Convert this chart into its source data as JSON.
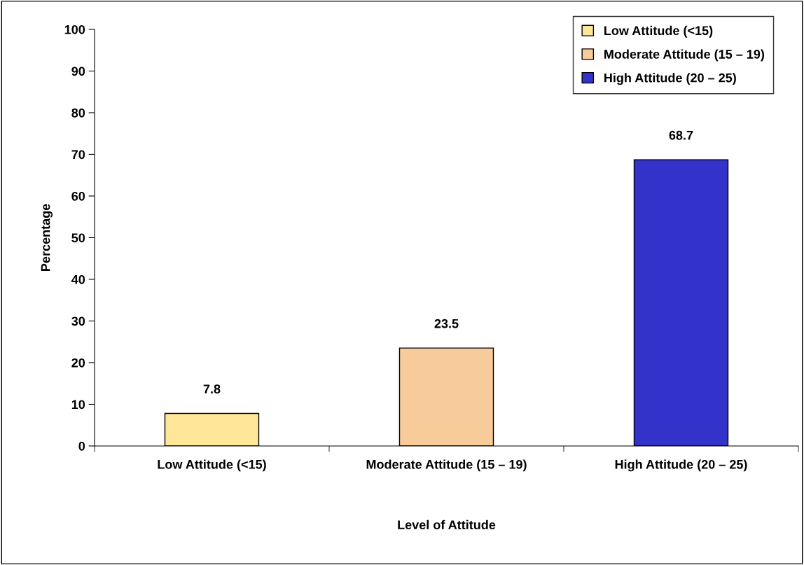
{
  "chart_data": {
    "type": "bar",
    "xlabel": "Level of Attitude",
    "ylabel": "Percentage",
    "categories": [
      "Low Attitude (<15)",
      "Moderate Attitude (15 – 19)",
      "High Attitude (20 – 25)"
    ],
    "stacked": true,
    "series": [
      {
        "name": "Low Attitude (<15)",
        "color": "#ffe699",
        "values": [
          7.8,
          null,
          null
        ]
      },
      {
        "name": "Moderate Attitude (15 – 19)",
        "color": "#f8cb9a",
        "values": [
          null,
          23.5,
          null
        ]
      },
      {
        "name": "High Attitude (20 – 25)",
        "color": "#3333cc",
        "values": [
          null,
          null,
          68.7
        ]
      }
    ],
    "ylim": [
      0,
      100
    ],
    "yticks": [
      0,
      10,
      20,
      30,
      40,
      50,
      60,
      70,
      80,
      90,
      100
    ],
    "data_labels": true,
    "legend": "top right",
    "grid": false
  }
}
